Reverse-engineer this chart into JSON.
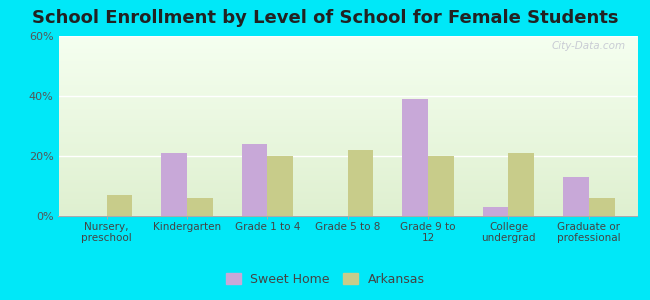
{
  "title": "School Enrollment by Level of School for Female Students",
  "categories": [
    "Nursery,\npreschool",
    "Kindergarten",
    "Grade 1 to 4",
    "Grade 5 to 8",
    "Grade 9 to\n12",
    "College\nundergrad",
    "Graduate or\nprofessional"
  ],
  "sweet_home": [
    0,
    21,
    24,
    0,
    39,
    3,
    13
  ],
  "arkansas": [
    7,
    6,
    20,
    22,
    20,
    21,
    6
  ],
  "sweet_home_color": "#c8a8d8",
  "arkansas_color": "#c8cc8a",
  "background_outer": "#00e8f8",
  "ylim": [
    0,
    60
  ],
  "yticks": [
    0,
    20,
    40,
    60
  ],
  "ytick_labels": [
    "0%",
    "20%",
    "40%",
    "60%"
  ],
  "title_fontsize": 13,
  "bar_width": 0.32,
  "legend_labels": [
    "Sweet Home",
    "Arkansas"
  ],
  "watermark": "City-Data.com",
  "plot_bg_top": "#f5fff0",
  "plot_bg_bottom": "#dff0d0"
}
